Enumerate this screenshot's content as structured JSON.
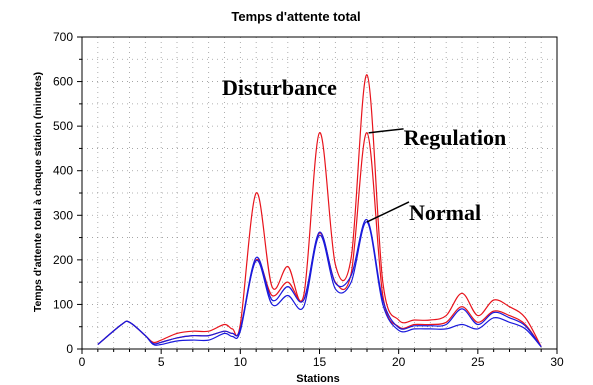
{
  "chart_data": {
    "type": "line",
    "title": "Temps d'attente total",
    "xlabel": "Stations",
    "ylabel": "Temps d'attente total à chaque station (minutes)",
    "xlim": [
      0,
      30
    ],
    "ylim": [
      0,
      700
    ],
    "xticks": [
      "0",
      "5",
      "10",
      "15",
      "20",
      "25",
      "30"
    ],
    "yticks": [
      "0",
      "100",
      "200",
      "300",
      "400",
      "500",
      "600",
      "700"
    ],
    "grid": true,
    "colors": {
      "red": "#e8141c",
      "blue": "#1a1adc",
      "annotation": "#000000"
    },
    "x": [
      1,
      2.5,
      3,
      4,
      4.5,
      5,
      6,
      7,
      8,
      9,
      9.5,
      10,
      11,
      12,
      13,
      14,
      15,
      16,
      17,
      18,
      19,
      20,
      21,
      22,
      23,
      24,
      25,
      26,
      27,
      28,
      29
    ],
    "series": [
      {
        "color": "#e8141c",
        "values": [
          10,
          55,
          60,
          30,
          15,
          20,
          35,
          40,
          40,
          55,
          45,
          55,
          350,
          140,
          185,
          120,
          485,
          190,
          205,
          615,
          150,
          65,
          65,
          65,
          75,
          125,
          75,
          110,
          95,
          70,
          5
        ]
      },
      {
        "color": "#e8141c",
        "values": [
          10,
          55,
          60,
          30,
          12,
          15,
          25,
          30,
          30,
          40,
          35,
          45,
          200,
          120,
          150,
          110,
          260,
          150,
          170,
          485,
          120,
          50,
          55,
          55,
          60,
          95,
          60,
          85,
          75,
          55,
          5
        ]
      },
      {
        "color": "#1a1adc",
        "values": [
          10,
          55,
          60,
          30,
          10,
          10,
          18,
          20,
          20,
          35,
          28,
          40,
          198,
          100,
          120,
          95,
          255,
          135,
          150,
          285,
          100,
          42,
          45,
          45,
          45,
          55,
          45,
          70,
          60,
          45,
          5
        ]
      },
      {
        "color": "#1a1adc",
        "values": [
          10,
          55,
          60,
          30,
          12,
          15,
          25,
          30,
          30,
          40,
          35,
          45,
          205,
          110,
          140,
          110,
          262,
          148,
          165,
          290,
          110,
          48,
          52,
          52,
          55,
          90,
          55,
          82,
          70,
          52,
          5
        ]
      }
    ],
    "annotations": [
      {
        "text": "Disturbance",
        "x": 18.0,
        "y": 615,
        "arrow": false
      },
      {
        "text": "Regulation",
        "x": 18.1,
        "y": 485,
        "arrow": true
      },
      {
        "text": "Normal",
        "x": 18.0,
        "y": 285,
        "arrow": true
      }
    ]
  }
}
